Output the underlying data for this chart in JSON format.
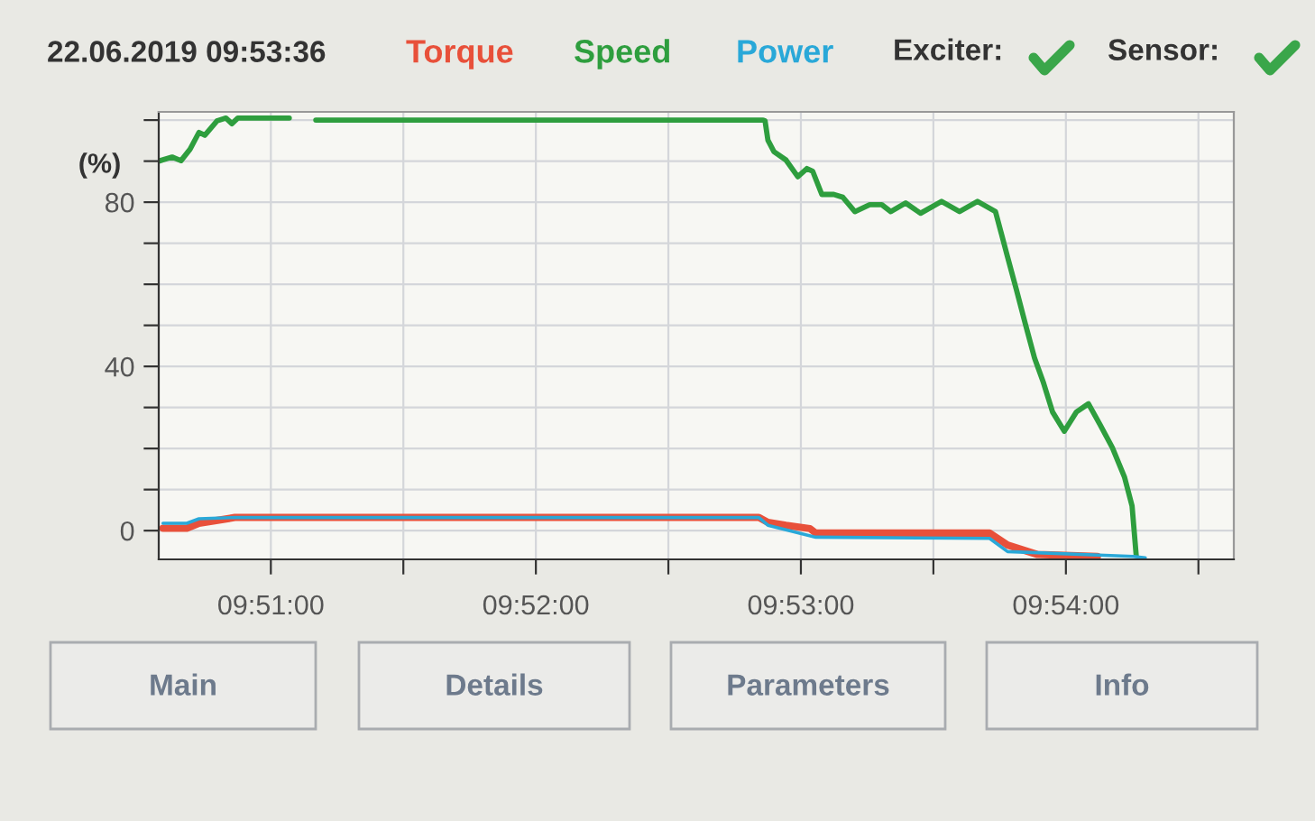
{
  "chart_data": {
    "type": "line",
    "title": "22.06.2019 09:53:36",
    "ylabel": "(%)",
    "series": [
      {
        "name": "Torque",
        "color": "#e8503a",
        "x": [
          9.84322,
          9.84472,
          9.84548,
          9.84774,
          9.88069,
          9.88126,
          9.88239,
          9.8839,
          9.88427,
          9.8952,
          9.89633,
          9.89821,
          9.90198
        ],
        "values": [
          0.6,
          0.6,
          1.8,
          3.2,
          3.2,
          2.0,
          1.3,
          0.5,
          -0.6,
          -0.6,
          -3.5,
          -5.8,
          -6.3
        ]
      },
      {
        "name": "Speed",
        "color": "#2e9e3e",
        "x": [
          9.84303,
          9.84379,
          9.84435,
          9.84492,
          9.84548,
          9.84585,
          9.84661,
          9.84718,
          9.84755,
          9.84792,
          9.85116,
          9.852,
          9.85283,
          9.88096,
          9.88108,
          9.88126,
          9.88164,
          9.88239,
          9.88314,
          9.88371,
          9.88408,
          9.88465,
          9.8854,
          9.88597,
          9.88673,
          9.88766,
          9.88842,
          9.88899,
          9.88992,
          9.89086,
          9.89218,
          9.89331,
          9.89444,
          9.89557,
          9.89595,
          9.89633,
          9.8969,
          9.89746,
          9.89803,
          9.89859,
          9.89916,
          9.8999,
          9.90066,
          9.90142,
          9.90216,
          9.90292,
          9.90368,
          9.90416,
          9.90442
        ],
        "values": [
          90.1,
          91.0,
          90.1,
          92.9,
          97.0,
          96.3,
          99.8,
          100.5,
          99.1,
          100.5,
          100.5,
          null,
          100,
          100,
          99.8,
          95.1,
          92.3,
          90.3,
          86.2,
          88.2,
          87.5,
          81.9,
          81.9,
          81.2,
          77.7,
          79.4,
          79.4,
          77.7,
          79.8,
          77.3,
          80.2,
          77.7,
          80.2,
          77.7,
          72.2,
          66.7,
          58.5,
          50.2,
          42.0,
          36.0,
          28.9,
          24.2,
          28.9,
          30.9,
          25.7,
          20.2,
          13.1,
          6.0,
          -6.0
        ]
      },
      {
        "name": "Power",
        "color": "#29a8d8",
        "x": [
          9.84322,
          9.84472,
          9.84548,
          9.84774,
          9.88069,
          9.88126,
          9.88427,
          9.8952,
          9.89633,
          9.90424,
          9.90499
        ],
        "values": [
          1.8,
          1.8,
          2.9,
          3.2,
          3.2,
          1.3,
          -1.6,
          -1.9,
          -5.1,
          -6.3,
          -6.6
        ]
      }
    ],
    "xlim": [
      9.84295,
      9.91056
    ],
    "xticks": [
      {
        "value": 9.85,
        "label": "09:51:00"
      },
      {
        "value": 9.858333,
        "label": null
      },
      {
        "value": 9.866667,
        "label": "09:52:00"
      },
      {
        "value": 9.875,
        "label": null
      },
      {
        "value": 9.883333,
        "label": "09:53:00"
      },
      {
        "value": 9.891667,
        "label": null
      },
      {
        "value": 9.9,
        "label": "09:54:00"
      },
      {
        "value": 9.908333,
        "label": null
      }
    ],
    "ylim": [
      -7,
      102
    ],
    "yticks": [
      0,
      {
        "value": 10,
        "label": null
      },
      {
        "value": 20,
        "label": null
      },
      {
        "value": 30,
        "label": null
      },
      40,
      {
        "value": 50,
        "label": null
      },
      {
        "value": 60,
        "label": null
      },
      {
        "value": 70,
        "label": null
      },
      80,
      {
        "value": 90,
        "label": null
      },
      {
        "value": 100,
        "label": null
      }
    ],
    "grid": true,
    "legend": "top",
    "line_style": "solid",
    "marker": "none",
    "annotations": [
      "Exciter:",
      "Sensor:",
      "Main",
      "Details",
      "Parameters",
      "Info"
    ]
  }
}
